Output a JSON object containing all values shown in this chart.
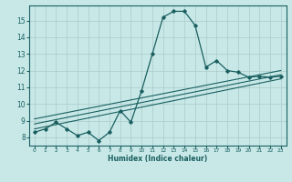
{
  "xlabel": "Humidex (Indice chaleur)",
  "bg_color": "#c8e8e8",
  "grid_color": "#b0d0d0",
  "line_color": "#1a5f5f",
  "xlim": [
    -0.5,
    23.5
  ],
  "ylim": [
    7.5,
    15.9
  ],
  "xticks": [
    0,
    1,
    2,
    3,
    4,
    5,
    6,
    7,
    8,
    9,
    10,
    11,
    12,
    13,
    14,
    15,
    16,
    17,
    18,
    19,
    20,
    21,
    22,
    23
  ],
  "yticks": [
    8,
    9,
    10,
    11,
    12,
    13,
    14,
    15
  ],
  "main_x": [
    0,
    1,
    2,
    3,
    4,
    5,
    6,
    7,
    8,
    9,
    10,
    11,
    12,
    13,
    14,
    15,
    16,
    17,
    18,
    19,
    20,
    21,
    22,
    23
  ],
  "main_y": [
    8.3,
    8.5,
    8.9,
    8.5,
    8.1,
    8.3,
    7.8,
    8.3,
    9.6,
    8.9,
    10.8,
    13.0,
    15.2,
    15.55,
    15.55,
    14.7,
    12.2,
    12.6,
    12.0,
    11.9,
    11.6,
    11.65,
    11.6,
    11.65
  ],
  "linear_lines": [
    {
      "x": [
        0,
        23
      ],
      "y": [
        8.5,
        11.5
      ]
    },
    {
      "x": [
        0,
        23
      ],
      "y": [
        8.8,
        11.75
      ]
    },
    {
      "x": [
        0,
        23
      ],
      "y": [
        9.1,
        12.0
      ]
    }
  ]
}
